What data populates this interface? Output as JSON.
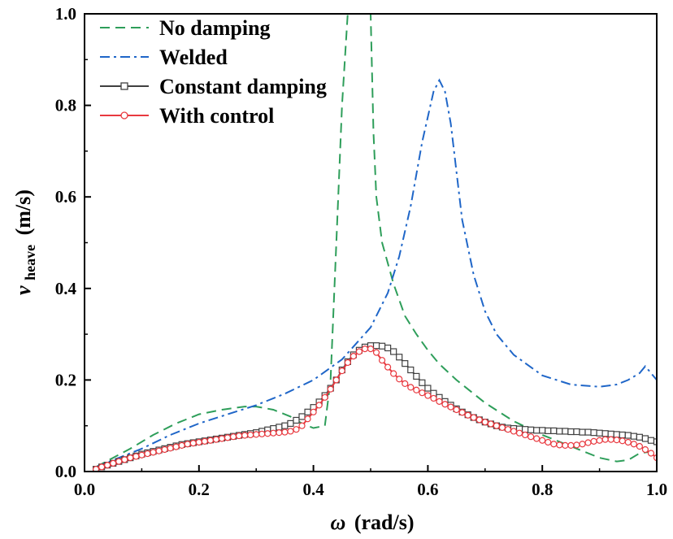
{
  "chart_data": {
    "type": "line",
    "xlabel_symbol": "ω",
    "xlabel_unit": "(rad/s)",
    "ylabel_symbol": "v",
    "ylabel_sub": "heave",
    "ylabel_unit": "(m/s)",
    "xlim": [
      0.0,
      1.0
    ],
    "ylim": [
      0.0,
      1.0
    ],
    "xticks": [
      "0.0",
      "0.2",
      "0.4",
      "0.6",
      "0.8",
      "1.0"
    ],
    "yticks": [
      "0.0",
      "0.2",
      "0.4",
      "0.6",
      "0.8",
      "1.0"
    ],
    "legend_position": "top-left",
    "grid": false,
    "series": [
      {
        "name": "No damping",
        "color": "#2e9e5a",
        "style": "dashed",
        "marker": "none",
        "x": [
          0.02,
          0.05,
          0.08,
          0.12,
          0.16,
          0.2,
          0.24,
          0.28,
          0.3,
          0.33,
          0.36,
          0.38,
          0.4,
          0.42,
          0.43,
          0.44,
          0.45,
          0.46,
          0.465,
          0.47,
          0.48,
          0.49,
          0.495,
          0.5,
          0.505,
          0.51,
          0.52,
          0.54,
          0.56,
          0.58,
          0.6,
          0.62,
          0.65,
          0.7,
          0.75,
          0.8,
          0.85,
          0.9,
          0.93,
          0.95,
          0.97,
          1.0
        ],
        "y": [
          0.01,
          0.03,
          0.05,
          0.08,
          0.105,
          0.125,
          0.135,
          0.142,
          0.142,
          0.135,
          0.12,
          0.105,
          0.095,
          0.1,
          0.2,
          0.5,
          0.8,
          1.0,
          1.0,
          1.0,
          1.0,
          1.0,
          1.0,
          1.0,
          0.74,
          0.6,
          0.5,
          0.41,
          0.34,
          0.3,
          0.265,
          0.235,
          0.2,
          0.15,
          0.11,
          0.08,
          0.055,
          0.03,
          0.022,
          0.025,
          0.04,
          0.045
        ]
      },
      {
        "name": "Welded",
        "color": "#1f66c8",
        "style": "dashdot",
        "marker": "none",
        "x": [
          0.02,
          0.05,
          0.1,
          0.15,
          0.2,
          0.25,
          0.3,
          0.35,
          0.4,
          0.45,
          0.5,
          0.53,
          0.55,
          0.57,
          0.59,
          0.61,
          0.62,
          0.63,
          0.64,
          0.66,
          0.68,
          0.7,
          0.72,
          0.75,
          0.8,
          0.85,
          0.9,
          0.93,
          0.95,
          0.97,
          0.98,
          0.99,
          1.0
        ],
        "y": [
          0.01,
          0.025,
          0.05,
          0.08,
          0.105,
          0.125,
          0.145,
          0.17,
          0.2,
          0.245,
          0.315,
          0.39,
          0.47,
          0.58,
          0.72,
          0.83,
          0.855,
          0.83,
          0.76,
          0.55,
          0.43,
          0.35,
          0.3,
          0.255,
          0.21,
          0.19,
          0.185,
          0.19,
          0.2,
          0.215,
          0.23,
          0.215,
          0.2
        ]
      },
      {
        "name": "Constant damping",
        "color": "#404040",
        "style": "solid",
        "marker": "square",
        "x": [
          0.02,
          0.03,
          0.04,
          0.05,
          0.06,
          0.07,
          0.08,
          0.09,
          0.1,
          0.11,
          0.12,
          0.13,
          0.14,
          0.15,
          0.16,
          0.17,
          0.18,
          0.19,
          0.2,
          0.21,
          0.22,
          0.23,
          0.24,
          0.25,
          0.26,
          0.27,
          0.28,
          0.29,
          0.3,
          0.31,
          0.32,
          0.33,
          0.34,
          0.35,
          0.36,
          0.37,
          0.38,
          0.39,
          0.4,
          0.41,
          0.42,
          0.43,
          0.44,
          0.45,
          0.46,
          0.47,
          0.48,
          0.49,
          0.5,
          0.51,
          0.52,
          0.53,
          0.54,
          0.55,
          0.56,
          0.57,
          0.58,
          0.59,
          0.6,
          0.61,
          0.62,
          0.63,
          0.64,
          0.65,
          0.66,
          0.67,
          0.68,
          0.69,
          0.7,
          0.71,
          0.72,
          0.73,
          0.74,
          0.75,
          0.76,
          0.77,
          0.78,
          0.79,
          0.8,
          0.81,
          0.82,
          0.83,
          0.84,
          0.85,
          0.86,
          0.87,
          0.88,
          0.89,
          0.9,
          0.91,
          0.92,
          0.93,
          0.94,
          0.95,
          0.96,
          0.97,
          0.98,
          0.99,
          1.0
        ],
        "y": [
          0.005,
          0.01,
          0.014,
          0.018,
          0.022,
          0.026,
          0.03,
          0.034,
          0.038,
          0.041,
          0.044,
          0.047,
          0.05,
          0.053,
          0.056,
          0.059,
          0.061,
          0.063,
          0.065,
          0.067,
          0.069,
          0.071,
          0.073,
          0.075,
          0.077,
          0.079,
          0.081,
          0.083,
          0.085,
          0.088,
          0.091,
          0.094,
          0.097,
          0.1,
          0.105,
          0.112,
          0.12,
          0.13,
          0.14,
          0.152,
          0.166,
          0.182,
          0.2,
          0.222,
          0.24,
          0.255,
          0.265,
          0.272,
          0.275,
          0.275,
          0.274,
          0.27,
          0.262,
          0.25,
          0.236,
          0.222,
          0.208,
          0.194,
          0.182,
          0.171,
          0.162,
          0.153,
          0.145,
          0.137,
          0.13,
          0.124,
          0.118,
          0.113,
          0.108,
          0.104,
          0.1,
          0.097,
          0.095,
          0.094,
          0.093,
          0.092,
          0.091,
          0.09,
          0.09,
          0.089,
          0.089,
          0.088,
          0.088,
          0.087,
          0.087,
          0.086,
          0.086,
          0.085,
          0.084,
          0.083,
          0.082,
          0.081,
          0.08,
          0.079,
          0.077,
          0.075,
          0.072,
          0.068,
          0.065
        ]
      },
      {
        "name": "With control",
        "color": "#e8393f",
        "style": "solid",
        "marker": "circle",
        "x": [
          0.02,
          0.03,
          0.04,
          0.05,
          0.06,
          0.07,
          0.08,
          0.09,
          0.1,
          0.11,
          0.12,
          0.13,
          0.14,
          0.15,
          0.16,
          0.17,
          0.18,
          0.19,
          0.2,
          0.21,
          0.22,
          0.23,
          0.24,
          0.25,
          0.26,
          0.27,
          0.28,
          0.29,
          0.3,
          0.31,
          0.32,
          0.33,
          0.34,
          0.35,
          0.36,
          0.37,
          0.38,
          0.39,
          0.4,
          0.41,
          0.42,
          0.43,
          0.44,
          0.45,
          0.46,
          0.47,
          0.48,
          0.49,
          0.5,
          0.51,
          0.52,
          0.53,
          0.54,
          0.55,
          0.56,
          0.57,
          0.58,
          0.59,
          0.6,
          0.61,
          0.62,
          0.63,
          0.64,
          0.65,
          0.66,
          0.67,
          0.68,
          0.69,
          0.7,
          0.71,
          0.72,
          0.73,
          0.74,
          0.75,
          0.76,
          0.77,
          0.78,
          0.79,
          0.8,
          0.81,
          0.82,
          0.83,
          0.84,
          0.85,
          0.86,
          0.87,
          0.88,
          0.89,
          0.9,
          0.91,
          0.92,
          0.93,
          0.94,
          0.95,
          0.96,
          0.97,
          0.98,
          0.99,
          1.0
        ],
        "y": [
          0.005,
          0.01,
          0.014,
          0.018,
          0.022,
          0.026,
          0.03,
          0.033,
          0.036,
          0.039,
          0.042,
          0.045,
          0.048,
          0.051,
          0.054,
          0.057,
          0.06,
          0.062,
          0.064,
          0.066,
          0.068,
          0.07,
          0.072,
          0.074,
          0.076,
          0.078,
          0.079,
          0.08,
          0.081,
          0.082,
          0.083,
          0.084,
          0.085,
          0.086,
          0.088,
          0.092,
          0.1,
          0.115,
          0.13,
          0.145,
          0.162,
          0.18,
          0.2,
          0.22,
          0.238,
          0.252,
          0.262,
          0.268,
          0.268,
          0.26,
          0.243,
          0.228,
          0.214,
          0.202,
          0.192,
          0.184,
          0.178,
          0.172,
          0.166,
          0.16,
          0.153,
          0.147,
          0.141,
          0.135,
          0.129,
          0.123,
          0.118,
          0.113,
          0.108,
          0.104,
          0.1,
          0.096,
          0.092,
          0.088,
          0.084,
          0.08,
          0.076,
          0.072,
          0.068,
          0.064,
          0.06,
          0.058,
          0.057,
          0.057,
          0.058,
          0.06,
          0.063,
          0.066,
          0.068,
          0.07,
          0.07,
          0.069,
          0.067,
          0.064,
          0.06,
          0.055,
          0.048,
          0.04,
          0.03
        ]
      }
    ]
  }
}
